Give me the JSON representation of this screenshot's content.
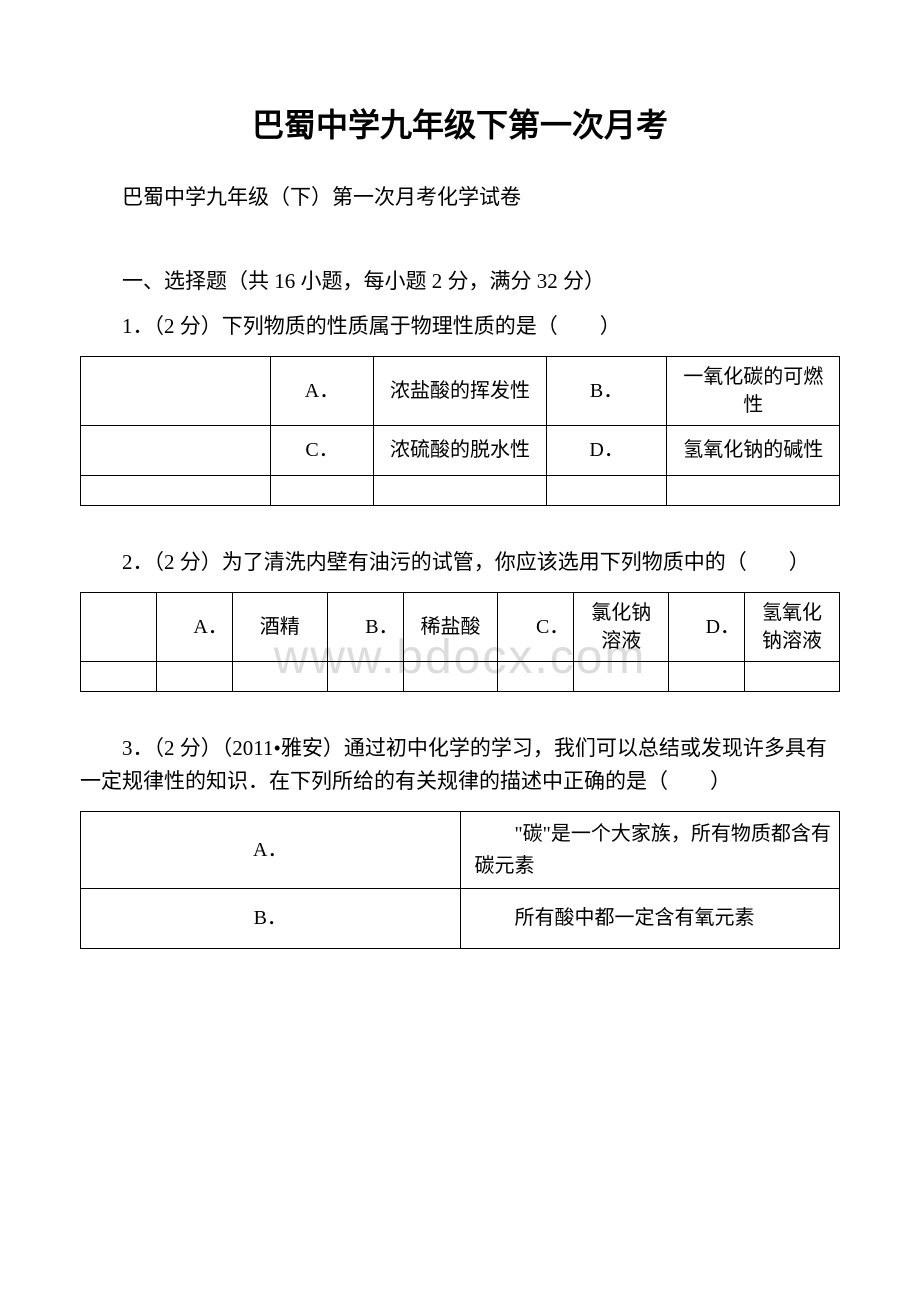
{
  "watermark": "www.bdocx.com",
  "title": "巴蜀中学九年级下第一次月考",
  "subtitle": "巴蜀中学九年级（下）第一次月考化学试卷",
  "section1": "一、选择题（共 16 小题，每小题 2 分，满分 32 分）",
  "q1": {
    "text": "1．（2 分）下列物质的性质属于物理性质的是（　　）",
    "optA_label": "A．",
    "optA_text": "浓盐酸的挥发性",
    "optB_label": "B．",
    "optB_text": "一氧化碳的可燃性",
    "optC_label": "C．",
    "optC_text": "浓硫酸的脱水性",
    "optD_label": "D．",
    "optD_text": "氢氧化钠的碱性"
  },
  "q2": {
    "text": "2．（2 分）为了清洗内壁有油污的试管，你应该选用下列物质中的（　　）",
    "optA_label": "A．",
    "optA_text": "酒精",
    "optB_label": "B．",
    "optB_text": "稀盐酸",
    "optC_label": "C．",
    "optC_text": "氯化钠溶液",
    "optD_label": "D．",
    "optD_text": "氢氧化钠溶液"
  },
  "q3": {
    "text": "3．（2 分）（2011•雅安）通过初中化学的学习，我们可以总结或发现许多具有一定规律性的知识．在下列所给的有关规律的描述中正确的是（　　）",
    "optA_label": "A．",
    "optA_text": "\"碳\"是一个大家族，所有物质都含有碳元素",
    "optB_label": "B．",
    "optB_text": "所有酸中都一定含有氧元素"
  },
  "colors": {
    "text": "#000000",
    "background": "#ffffff",
    "border": "#000000",
    "watermark": "#dcdcdc"
  },
  "fonts": {
    "body_size": 21,
    "title_size": 32,
    "watermark_size": 48
  }
}
